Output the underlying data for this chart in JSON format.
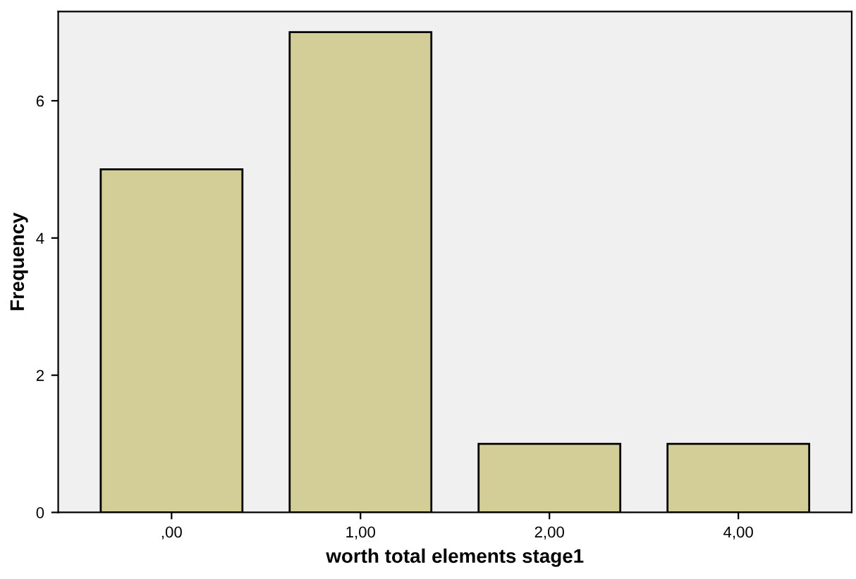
{
  "chart_data": {
    "type": "bar",
    "xlabel": "worth total elements stage1",
    "ylabel": "Frequency",
    "categories": [
      ",00",
      "1,00",
      "2,00",
      "4,00"
    ],
    "values": [
      5,
      7,
      1,
      1
    ],
    "color": "#d3ce97",
    "ylim": [
      0,
      7.3
    ],
    "yticks": [
      0,
      2,
      4,
      6
    ],
    "grid": false
  }
}
